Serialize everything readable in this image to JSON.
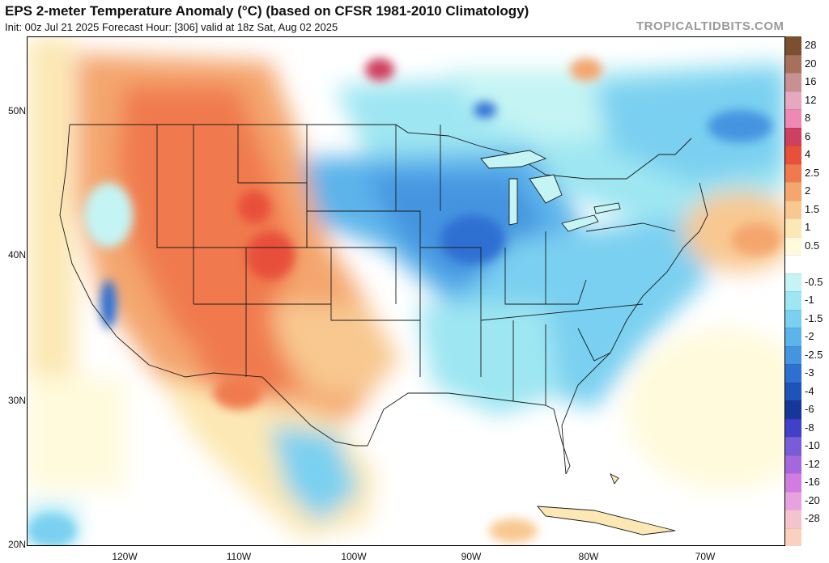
{
  "header": {
    "title": "EPS 2-meter Temperature Anomaly (°C) (based on CFSR 1981-2010 Climatology)",
    "subtitle": "Init: 00z Jul 21 2025   Forecast Hour: [306]   valid at 18z Sat, Aug 02 2025",
    "watermark": "TROPICALTIDBITS.COM"
  },
  "map": {
    "latitude_labels": [
      "50N",
      "40N",
      "30N",
      "20N"
    ],
    "longitude_labels": [
      "120W",
      "110W",
      "100W",
      "90W",
      "80W",
      "70W"
    ]
  },
  "colorbar": {
    "levels": [
      {
        "label": "28",
        "color": "#7a5030"
      },
      {
        "label": "20",
        "color": "#a8705a"
      },
      {
        "label": "16",
        "color": "#c89090"
      },
      {
        "label": "12",
        "color": "#e6a8c0"
      },
      {
        "label": "8",
        "color": "#ee88b4"
      },
      {
        "label": "6",
        "color": "#ce4060"
      },
      {
        "label": "4",
        "color": "#e8503a"
      },
      {
        "label": "2.5",
        "color": "#f07a4e"
      },
      {
        "label": "2",
        "color": "#f4a66e"
      },
      {
        "label": "1.5",
        "color": "#f8c890"
      },
      {
        "label": "1",
        "color": "#fce8b4"
      },
      {
        "label": "0.5",
        "color": "#fffadc"
      },
      {
        "label": "",
        "color": "#ffffff"
      },
      {
        "label": "-0.5",
        "color": "#c4f4f4"
      },
      {
        "label": "-1",
        "color": "#9ee6f2"
      },
      {
        "label": "-1.5",
        "color": "#7ad0f0"
      },
      {
        "label": "-2",
        "color": "#5cb4ea"
      },
      {
        "label": "-2.5",
        "color": "#4494e0"
      },
      {
        "label": "-3",
        "color": "#2e70d2"
      },
      {
        "label": "-4",
        "color": "#1e54b8"
      },
      {
        "label": "-6",
        "color": "#14389a"
      },
      {
        "label": "-8",
        "color": "#4040c8"
      },
      {
        "label": "-10",
        "color": "#7a5cd8"
      },
      {
        "label": "-12",
        "color": "#a468dc"
      },
      {
        "label": "-16",
        "color": "#d07ce0"
      },
      {
        "label": "-20",
        "color": "#e8a2e2"
      },
      {
        "label": "-28",
        "color": "#f4c4cc"
      },
      {
        "label": "",
        "color": "#fcd0c0"
      }
    ]
  }
}
